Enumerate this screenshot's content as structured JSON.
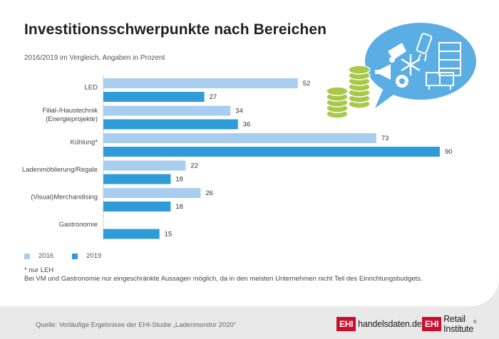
{
  "header": {
    "title": "Investitionsschwerpunkte nach Bereichen",
    "subtitle": "2016/2019 im Vergleich, Angaben in Prozent"
  },
  "chart_data": {
    "type": "bar",
    "orientation": "horizontal",
    "categories": [
      "LED",
      "Filial-/Haustechnik (Energieprojekte)",
      "Kühlung*",
      "Ladenmöblierung/Regale",
      "(Visual)Merchandising",
      "Gastronomie"
    ],
    "category_lines": [
      [
        "LED"
      ],
      [
        "Filial-/Haustechnik",
        "(Energieprojekte)"
      ],
      [
        "Kühlung*"
      ],
      [
        "Ladenmöblierung/Regale"
      ],
      [
        "(Visual)Merchandising"
      ],
      [
        "Gastronomie"
      ]
    ],
    "series": [
      {
        "name": "2016",
        "values": [
          52,
          34,
          73,
          22,
          26,
          null
        ],
        "color": "#a9cdee"
      },
      {
        "name": "2019",
        "values": [
          27,
          36,
          90,
          18,
          18,
          15
        ],
        "color": "#2f9bd8"
      }
    ],
    "xlim": [
      0,
      90
    ],
    "grid": false,
    "legend": "bottom-left"
  },
  "notes": {
    "line1": "* nur LEH",
    "line2": "Bei VM und Gastronomie nur eingeschränkte Aussagen möglich, da in den meisten Unternehmen nicht Teil des Einrichtungsbudgets."
  },
  "footer": {
    "source": "Quelle: Vorläufige Ergebnisse der EHI-Studie „Ladenmonitor 2020“",
    "logo1_box": "EHI",
    "logo1_text": "handelsdaten.de",
    "logo2_box": "EHI",
    "logo2_text": "Retail Institute",
    "logo2_reg": "®"
  },
  "colors": {
    "accent_light": "#a9cdee",
    "accent_dark": "#2f9bd8",
    "brand_red": "#c8102e",
    "coins": "#a9c94a",
    "bubble": "#5aaee4"
  },
  "icons": [
    "coin-stack-icon",
    "speech-bubble-icon",
    "led-bulb-icon",
    "snowflake-icon",
    "shelf-icon",
    "counter-icon",
    "megaphone-icon",
    "spotlight-icon",
    "gear-icon"
  ]
}
